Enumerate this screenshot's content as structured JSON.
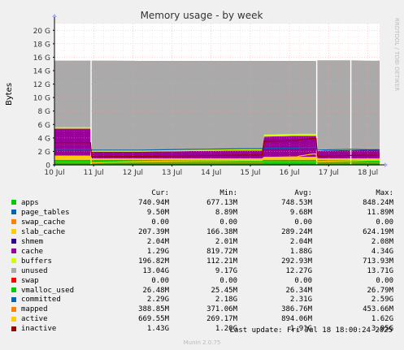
{
  "chart_data": {
    "type": "area",
    "title": "Memory usage - by week",
    "ylabel": "Bytes",
    "watermark": "RRDTOOL / TOBI OETIKER",
    "ylim": [
      0,
      21
    ],
    "y_unit": "G",
    "y_ticks": [
      0,
      2,
      4,
      6,
      8,
      10,
      12,
      14,
      16,
      18,
      20
    ],
    "y_tick_labels": [
      "0",
      "2 G",
      "4 G",
      "6 G",
      "8 G",
      "10 G",
      "12 G",
      "14 G",
      "16 G",
      "18 G",
      "20 G"
    ],
    "x_range": [
      0,
      8.3
    ],
    "x_ticks": [
      0,
      1,
      2,
      3,
      4,
      5,
      6,
      7,
      8
    ],
    "x_tick_labels": [
      "10 Jul",
      "11 Jul",
      "12 Jul",
      "13 Jul",
      "14 Jul",
      "15 Jul",
      "16 Jul",
      "17 Jul",
      "18 Jul"
    ],
    "gaps": [
      [
        0.92,
        0.95
      ],
      [
        6.68,
        6.71
      ],
      [
        7.55,
        7.58
      ]
    ],
    "x": [
      0,
      0.92,
      0.95,
      1.5,
      2.2,
      2.8,
      3.5,
      4.2,
      4.8,
      5.3,
      5.35,
      6.2,
      6.25,
      6.6,
      6.68,
      6.71,
      7.0,
      7.55,
      7.58,
      8.0,
      8.3
    ],
    "series": [
      {
        "name": "apps",
        "color": "#00cc00",
        "values": [
          0.74,
          0.74,
          0.74,
          0.74,
          0.74,
          0.74,
          0.74,
          0.74,
          0.74,
          0.74,
          0.74,
          0.74,
          0.74,
          0.74,
          0.74,
          0.74,
          0.74,
          0.74,
          0.74,
          0.74,
          0.74
        ]
      },
      {
        "name": "page_tables",
        "color": "#0066b3",
        "values": [
          0.01,
          0.01,
          0.01,
          0.01,
          0.01,
          0.01,
          0.01,
          0.01,
          0.01,
          0.01,
          0.01,
          0.01,
          0.01,
          0.01,
          0.01,
          0.01,
          0.01,
          0.01,
          0.01,
          0.01,
          0.01
        ]
      },
      {
        "name": "swap_cache",
        "color": "#ff8000",
        "values": [
          0,
          0,
          0,
          0,
          0,
          0,
          0,
          0,
          0,
          0,
          0,
          0,
          0,
          0,
          0,
          0,
          0,
          0,
          0,
          0,
          0
        ]
      },
      {
        "name": "slab_cache",
        "color": "#ffcc00",
        "values": [
          0.62,
          0.62,
          0.2,
          0.2,
          0.2,
          0.2,
          0.2,
          0.2,
          0.2,
          0.2,
          0.45,
          0.45,
          0.45,
          0.45,
          0.45,
          0.2,
          0.2,
          0.2,
          0.2,
          0.2,
          0.2
        ]
      },
      {
        "name": "shmem",
        "color": "#330099",
        "values": [
          0,
          0,
          0,
          0,
          0,
          0,
          0,
          0,
          0,
          0,
          0,
          0,
          0,
          0,
          0,
          0,
          0,
          0,
          0,
          0,
          0
        ]
      },
      {
        "name": "cache",
        "color": "#990099",
        "values": [
          4.0,
          4.0,
          1.0,
          1.0,
          1.0,
          1.05,
          1.1,
          1.15,
          1.2,
          1.2,
          3.0,
          3.1,
          3.1,
          3.1,
          3.1,
          1.1,
          1.2,
          1.25,
          1.25,
          1.29,
          1.29
        ]
      },
      {
        "name": "buffers",
        "color": "#ccff00",
        "values": [
          0.2,
          0.2,
          0.2,
          0.2,
          0.2,
          0.2,
          0.2,
          0.2,
          0.2,
          0.2,
          0.3,
          0.3,
          0.3,
          0.3,
          0.3,
          0.2,
          0.2,
          0.2,
          0.2,
          0.2,
          0.2
        ]
      },
      {
        "name": "unused",
        "color": "#aaaaaa",
        "values": [
          9.93,
          9.93,
          13.35,
          13.35,
          13.3,
          13.25,
          13.2,
          13.15,
          13.1,
          13.1,
          10.95,
          10.85,
          10.85,
          10.85,
          10.85,
          13.3,
          13.2,
          13.15,
          13.15,
          13.04,
          13.04
        ]
      }
    ],
    "overlays": [
      {
        "name": "swap",
        "color": "#ff0000",
        "values": [
          0,
          0,
          0,
          0,
          0,
          0,
          0,
          0,
          0,
          0,
          0,
          0,
          0,
          0,
          0,
          0,
          0,
          0,
          0,
          0,
          0
        ]
      },
      {
        "name": "vmalloc_used",
        "color": "#00cc00",
        "values": [
          0.03,
          0.03,
          0.03,
          0.03,
          0.03,
          0.03,
          0.03,
          0.03,
          0.03,
          0.03,
          0.03,
          0.03,
          0.03,
          0.03,
          0.03,
          0.03,
          0.03,
          0.03,
          0.03,
          0.03,
          0.03
        ]
      },
      {
        "name": "committed",
        "color": "#0066b3",
        "values": [
          2.3,
          2.3,
          2.2,
          2.2,
          2.2,
          2.25,
          2.3,
          2.35,
          2.4,
          2.4,
          2.5,
          2.5,
          2.55,
          2.59,
          2.59,
          2.2,
          2.25,
          2.3,
          2.3,
          2.29,
          2.29
        ]
      },
      {
        "name": "mapped",
        "color": "#ff8000",
        "values": [
          0.4,
          0.4,
          0.38,
          0.38,
          0.38,
          0.38,
          0.38,
          0.38,
          0.38,
          0.38,
          0.45,
          0.45,
          0.45,
          0.45,
          0.45,
          0.38,
          0.38,
          0.39,
          0.39,
          0.39,
          0.39
        ]
      },
      {
        "name": "active",
        "color": "#ffcc00",
        "values": [
          1.3,
          1.3,
          0.27,
          0.4,
          0.5,
          0.55,
          0.6,
          0.62,
          0.65,
          0.65,
          1.1,
          1.2,
          1.3,
          1.62,
          1.62,
          0.5,
          0.55,
          0.6,
          0.6,
          0.67,
          0.67
        ]
      },
      {
        "name": "inactive",
        "color": "#990000",
        "values": [
          3.3,
          3.3,
          1.2,
          1.25,
          1.25,
          1.3,
          1.35,
          1.4,
          1.45,
          1.45,
          3.5,
          3.6,
          3.7,
          3.95,
          3.95,
          1.3,
          1.35,
          1.4,
          1.4,
          1.43,
          1.43
        ]
      }
    ],
    "legend_columns": [
      "Cur:",
      "Min:",
      "Avg:",
      "Max:"
    ],
    "legend": [
      {
        "name": "apps",
        "color": "#00cc00",
        "cur": "740.94M",
        "min": "677.13M",
        "avg": "748.53M",
        "max": "848.24M"
      },
      {
        "name": "page_tables",
        "color": "#0066b3",
        "cur": "9.50M",
        "min": "8.89M",
        "avg": "9.68M",
        "max": "11.89M"
      },
      {
        "name": "swap_cache",
        "color": "#ff8000",
        "cur": "0.00",
        "min": "0.00",
        "avg": "0.00",
        "max": "0.00"
      },
      {
        "name": "slab_cache",
        "color": "#ffcc00",
        "cur": "207.39M",
        "min": "166.38M",
        "avg": "289.24M",
        "max": "624.19M"
      },
      {
        "name": "shmem",
        "color": "#330099",
        "cur": "2.04M",
        "min": "2.01M",
        "avg": "2.04M",
        "max": "2.08M"
      },
      {
        "name": "cache",
        "color": "#990099",
        "cur": "1.29G",
        "min": "819.72M",
        "avg": "1.88G",
        "max": "4.34G"
      },
      {
        "name": "buffers",
        "color": "#ccff00",
        "cur": "196.82M",
        "min": "112.21M",
        "avg": "292.93M",
        "max": "713.93M"
      },
      {
        "name": "unused",
        "color": "#aaaaaa",
        "cur": "13.04G",
        "min": "9.17G",
        "avg": "12.27G",
        "max": "13.71G"
      },
      {
        "name": "swap",
        "color": "#ff0000",
        "cur": "0.00",
        "min": "0.00",
        "avg": "0.00",
        "max": "0.00"
      },
      {
        "name": "vmalloc_used",
        "color": "#00cc00",
        "cur": "26.48M",
        "min": "25.45M",
        "avg": "26.34M",
        "max": "26.79M"
      },
      {
        "name": "committed",
        "color": "#0066b3",
        "cur": "2.29G",
        "min": "2.18G",
        "avg": "2.31G",
        "max": "2.59G"
      },
      {
        "name": "mapped",
        "color": "#ff8000",
        "cur": "388.85M",
        "min": "371.06M",
        "avg": "386.76M",
        "max": "453.66M"
      },
      {
        "name": "active",
        "color": "#ffcc00",
        "cur": "669.55M",
        "min": "269.17M",
        "avg": "894.06M",
        "max": "1.62G"
      },
      {
        "name": "inactive",
        "color": "#990000",
        "cur": "1.43G",
        "min": "1.20G",
        "avg": "1.91G",
        "max": "3.95G"
      }
    ]
  },
  "footer": {
    "last_update": "Last update: Fri Jul 18 18:00:24 2025",
    "munin_version": "Munin 2.0.75"
  }
}
